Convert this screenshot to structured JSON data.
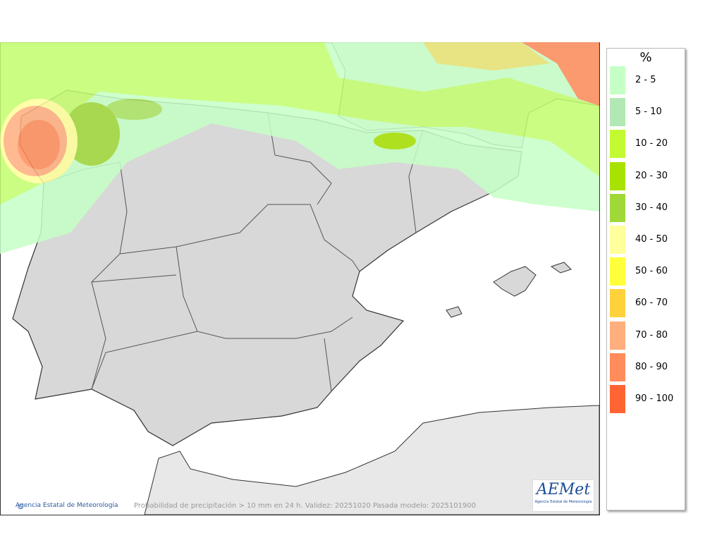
{
  "legend": {
    "title": "%",
    "items": [
      {
        "label": "2 - 5",
        "color": "#c6ffc6"
      },
      {
        "label": "5 - 10",
        "color": "#b2e8b4"
      },
      {
        "label": "10 - 20",
        "color": "#c2fb32"
      },
      {
        "label": "20 - 30",
        "color": "#a8e200"
      },
      {
        "label": "30 - 40",
        "color": "#a0d838"
      },
      {
        "label": "40 - 50",
        "color": "#ffff9c"
      },
      {
        "label": "50 - 60",
        "color": "#ffff3c"
      },
      {
        "label": "60 - 70",
        "color": "#ffd23c"
      },
      {
        "label": "70 - 80",
        "color": "#ffae7e"
      },
      {
        "label": "80 - 90",
        "color": "#ff8c5a"
      },
      {
        "label": "90 - 100",
        "color": "#ff6432"
      }
    ]
  },
  "footer": {
    "credit": "Agencia Estatal de Meteorología",
    "caption": "Probabilidad de precipitación > 10 mm en 24 h. Validez: 20251020 Pasada modelo: 2025101900"
  },
  "logo": {
    "name": "AEMet",
    "subtitle": "Agencia Estatal de Meteorología"
  }
}
